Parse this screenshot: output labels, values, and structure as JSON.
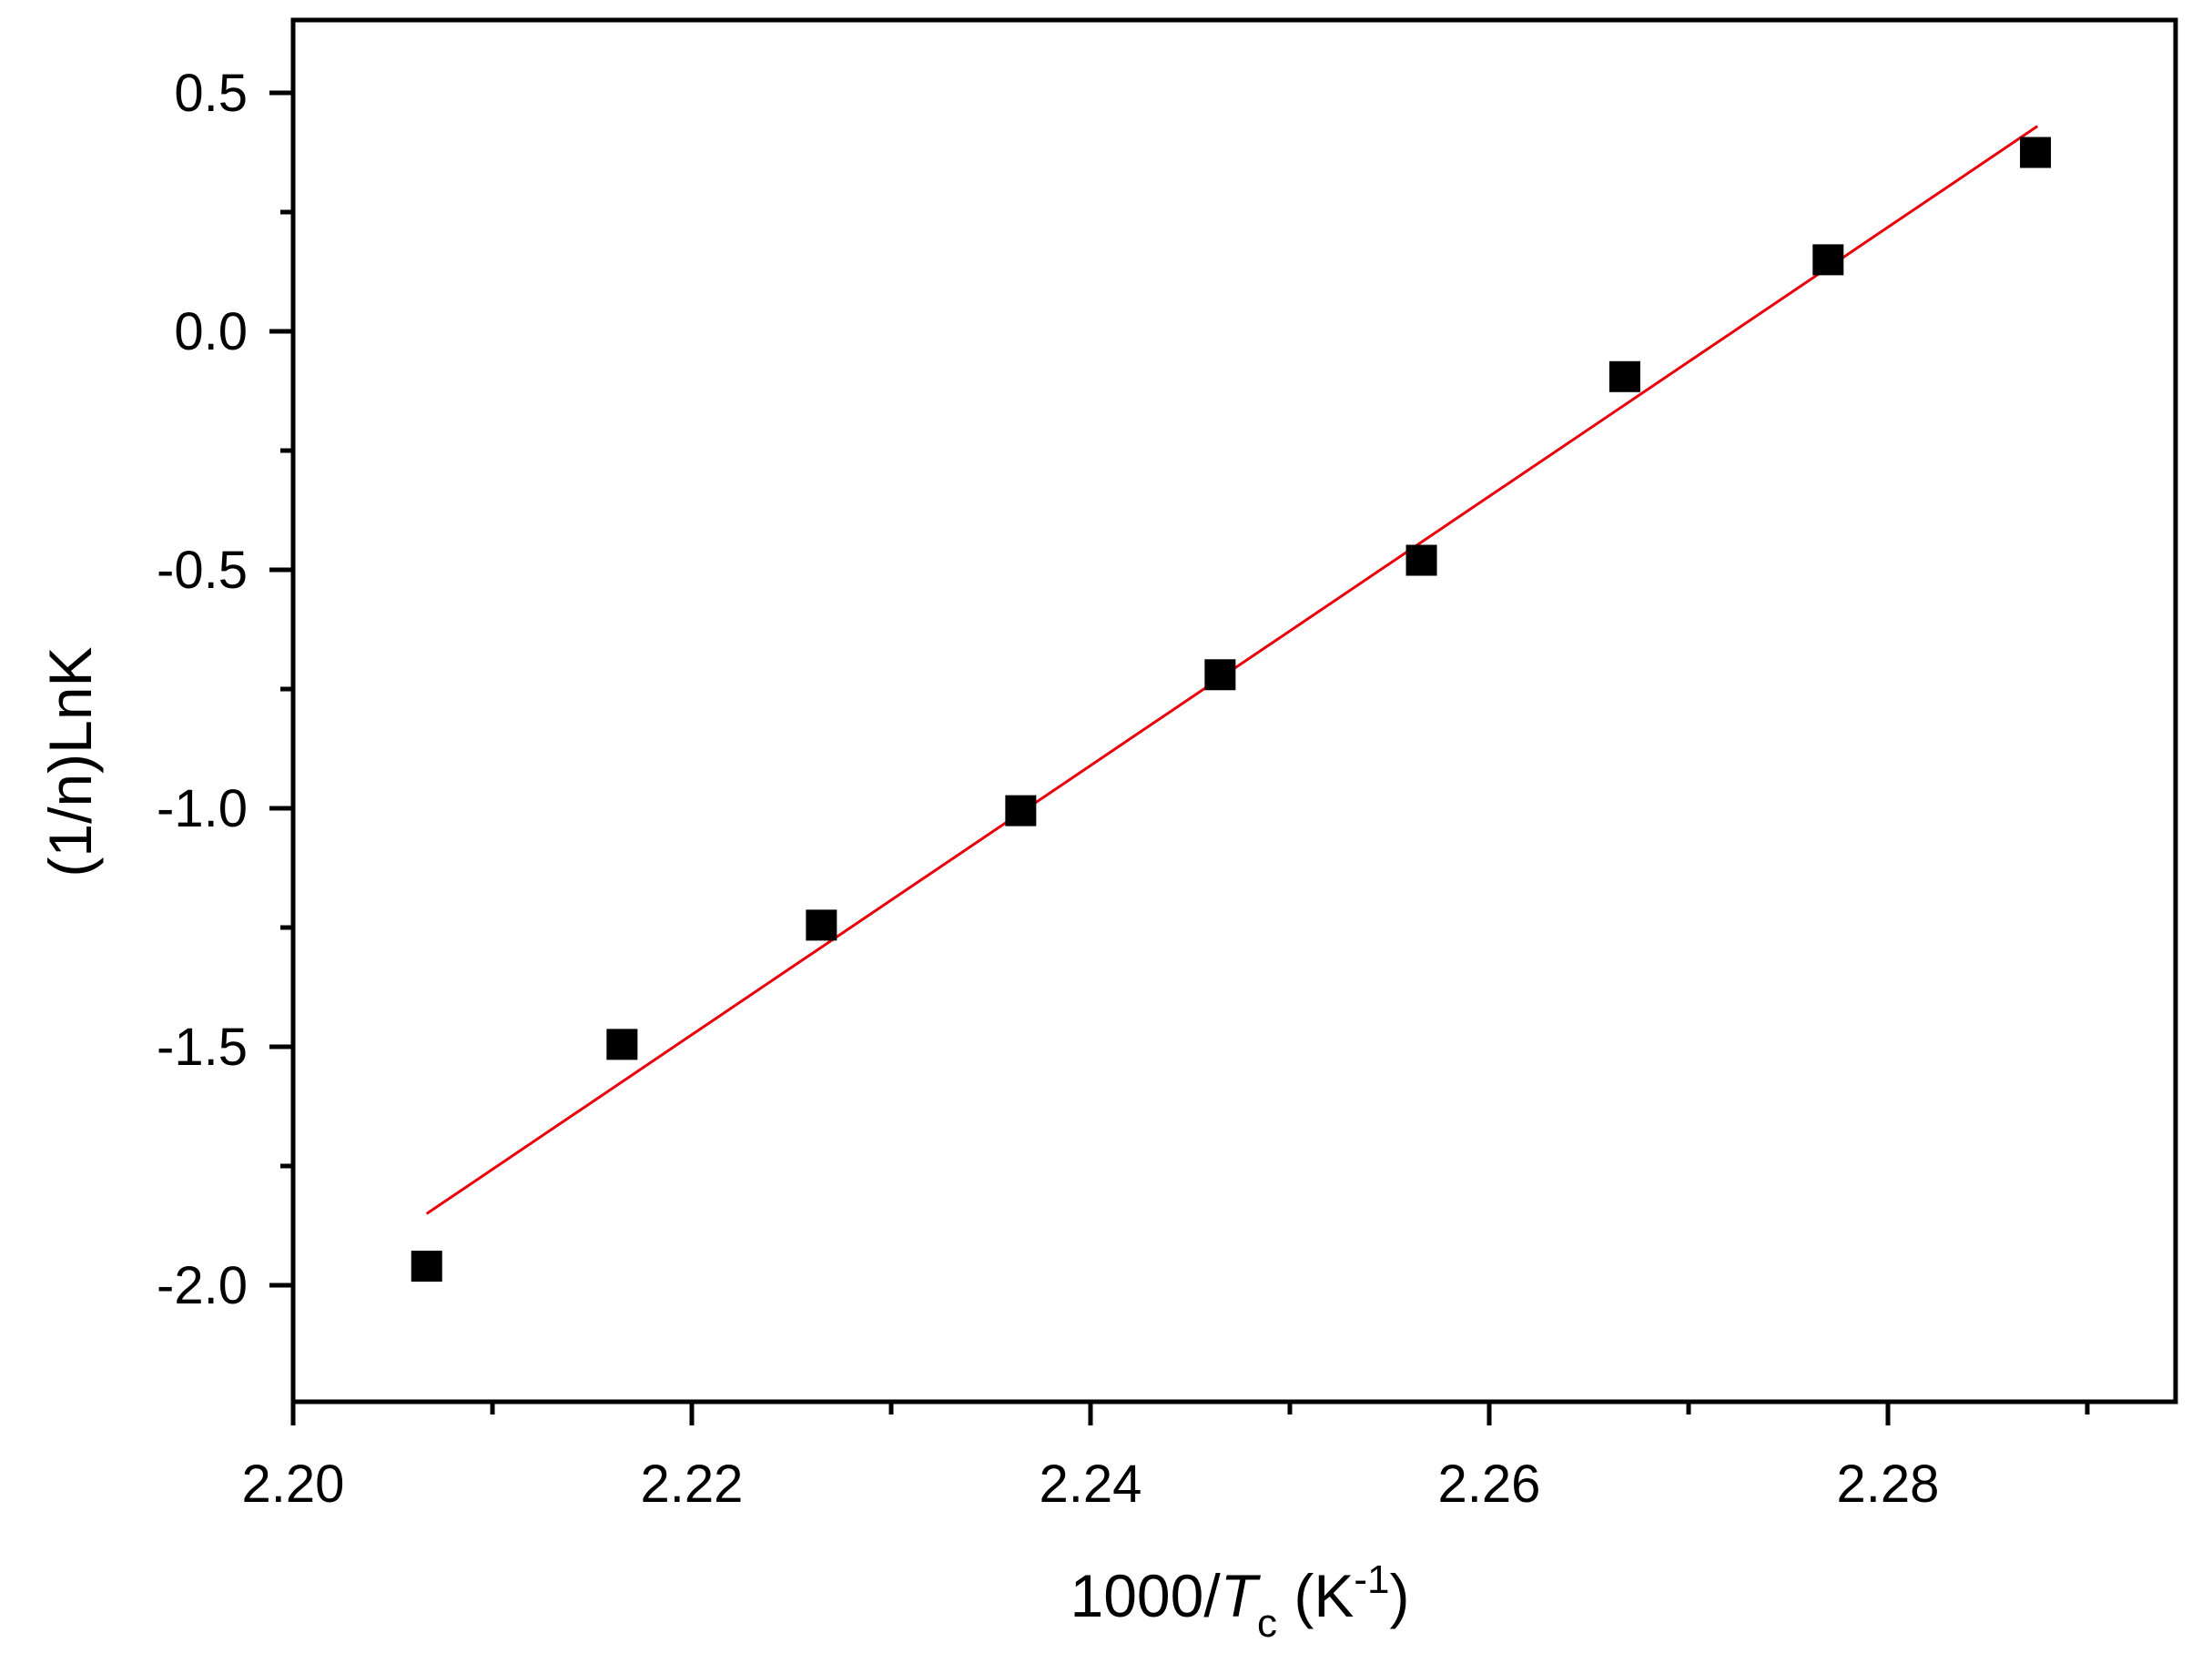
{
  "chart_data": {
    "type": "scatter",
    "title": "",
    "xlabel": {
      "main": "1000/",
      "italic": "T",
      "subscript": "c",
      "unit_open": " (K",
      "superscript": "-1",
      "unit_close": ")"
    },
    "ylabel": "(1/n)LnK",
    "xlim": [
      2.2,
      2.295
    ],
    "ylim": [
      -2.25,
      0.65
    ],
    "x_ticks": [
      {
        "value": 2.2,
        "label": "2.20"
      },
      {
        "value": 2.22,
        "label": "2.22"
      },
      {
        "value": 2.24,
        "label": "2.24"
      },
      {
        "value": 2.26,
        "label": "2.26"
      },
      {
        "value": 2.28,
        "label": "2.28"
      }
    ],
    "x_minor_ticks": [
      2.21,
      2.23,
      2.25,
      2.27,
      2.29
    ],
    "y_ticks": [
      {
        "value": 0.5,
        "label": "0.5"
      },
      {
        "value": 0.0,
        "label": "0.0"
      },
      {
        "value": -0.5,
        "label": "-0.5"
      },
      {
        "value": -1.0,
        "label": "-1.0"
      },
      {
        "value": -1.5,
        "label": "-1.5"
      },
      {
        "value": -2.0,
        "label": "-2.0"
      }
    ],
    "y_minor_ticks": [
      0.25,
      -0.25,
      -0.75,
      -1.25,
      -1.75
    ],
    "series": [
      {
        "marker": "square",
        "color": "#000000",
        "points": [
          {
            "x": 2.2067,
            "y": -1.96
          },
          {
            "x": 2.2165,
            "y": -1.495
          },
          {
            "x": 2.2265,
            "y": -1.245
          },
          {
            "x": 2.2365,
            "y": -1.005
          },
          {
            "x": 2.2465,
            "y": -0.72
          },
          {
            "x": 2.2566,
            "y": -0.48
          },
          {
            "x": 2.2668,
            "y": -0.095
          },
          {
            "x": 2.277,
            "y": 0.15
          },
          {
            "x": 2.2874,
            "y": 0.375
          }
        ]
      }
    ],
    "fit_line": {
      "color": "#e8000b",
      "x": [
        2.2067,
        2.2875
      ],
      "y": [
        -1.85,
        0.43
      ]
    },
    "grid": false,
    "legend": "none"
  }
}
